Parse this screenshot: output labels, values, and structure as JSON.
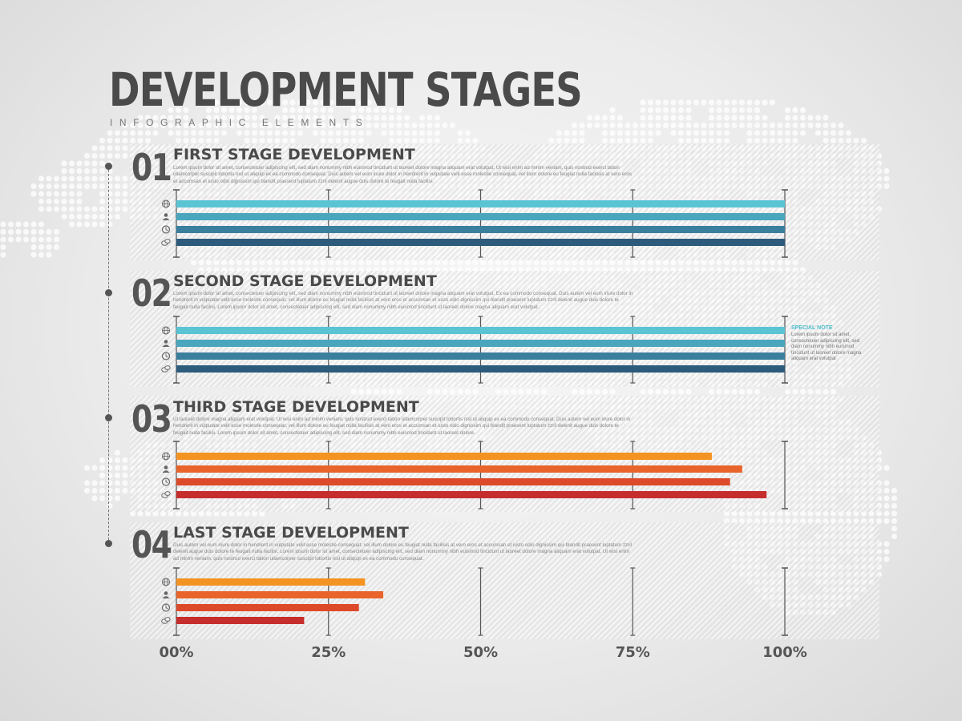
{
  "header": {
    "title": "DEVELOPMENT STAGES",
    "subtitle": "INFOGRAPHIC ELEMENTS"
  },
  "stages": [
    {
      "number": "01",
      "title": "FIRST STAGE DEVELOPMENT",
      "description": "Lorem ipsum dolor sit amet, consectetuer adipiscing elit, sed diam nonummy nibh euismod tincidunt ut laoreet dolore magna aliquam erat volutpat. Ut wisi enim ad minim veniam, quis nostrud exerci tation ullamcorper suscipit lobortis nisl ut aliquip ex ea commodo consequat. Duis autem vel eum iriure dolor in hendrerit in vulputate velit esse molestie consequat, vel illum dolore eu feugiat nulla facilisis at vero eros et accumsan et iusto odio dignissim qui blandit praesent luptatum zzril delenit augue duis dolore te feugait nulla facilisi."
    },
    {
      "number": "02",
      "title": "SECOND STAGE DEVELOPMENT",
      "description": "Lorem ipsum dolor sit amet, consectetuer adipiscing elit, sed diam nonummy nibh euismod tincidunt ut laoreet dolore magna aliquam erat volutpat. Ex ea commodo consequat. Duis autem vel eum iriure dolor in hendrerit in vulputate velit esse molestie consequat, vel illum dolore eu feugiat nulla facilisis at vero eros et accumsan et iusto odio dignissim qui blandit praesent luptatum zzril delenit augue duis dolore te feugait nulla facilisi. Lorem ipsum dolor sit amet, consectetuer adipiscing elit, sed diam nonummy nibh euismod tincidunt ut laoreet dolore magna aliquam erat volutpat."
    },
    {
      "number": "03",
      "title": "THIRD STAGE DEVELOPMENT",
      "description": "Ut laoreet dolore magna aliquam erat volutpat. Ut wisi enim ad minim veniam, quis nostrud exerci tation ullamcorper suscipit lobortis nisl ut aliquip ex ea commodo consequat. Duis autem vel eum iriure dolor in hendrerit in vulputate velit esse molestie consequat, vel illum dolore eu feugiat nulla facilisis at vero eros et accumsan et iusto odio dignissim qui blandit praesent luptatum zzril delenit augue duis dolore te feugait nulla facilisi. Lorem ipsum dolor sit amet, consectetuer adipiscing elit, sed diam nonummy nibh euismod tincidunt ut laoreet dolore."
    },
    {
      "number": "04",
      "title": "LAST STAGE DEVELOPMENT",
      "description": "Duis autem vel eum iriure dolor in hendrerit in vulputate velit esse molestie consequat, vel illum dolore eu feugiat nulla facilisis at vero eros et accumsan et iusto odio dignissim qui blandit praesent luptatum zzril delenit augue duis dolore te feugait nulla facilisi. Lorem ipsum dolor sit amet, consectetuer adipiscing elit, sed diam nonummy nibh euismod tincidunt ut laoreet dolore magna aliquam erat volutpat. Ut wisi enim ad minim veniam, quis nostrud exerci tation ullamcorper suscipit lobortis nisl ut aliquip ex ea commodo consequat."
    }
  ],
  "note": {
    "title": "SPECIAL NOTE",
    "text": "Lorem ipsum dolor sit amet, consectetuer adipiscing elit, sed diam nonummy nibh euismod tincidunt ut laoreet dolore magna aliquam erat volutpat"
  },
  "icons": [
    "globe-icon",
    "user-icon",
    "clock-icon",
    "chat-icon"
  ],
  "colors": {
    "blue": [
      "#5bc4d4",
      "#4aa6bd",
      "#3b7f9f",
      "#2c5b7b"
    ],
    "warm": [
      "#f39321",
      "#e8642a",
      "#dd4a2a",
      "#c62d2d"
    ],
    "text": "#4a4a4a"
  },
  "chart_data": {
    "type": "bar",
    "orientation": "horizontal",
    "x_tick_labels": [
      "00%",
      "25%",
      "50%",
      "75%",
      "100%"
    ],
    "xlim": [
      0,
      100
    ],
    "series": [
      {
        "stage": "01",
        "values": [
          100,
          100,
          100,
          100
        ]
      },
      {
        "stage": "02",
        "values": [
          100,
          100,
          100,
          100
        ]
      },
      {
        "stage": "03",
        "values": [
          88,
          93,
          91,
          97
        ]
      },
      {
        "stage": "04",
        "values": [
          31,
          34,
          30,
          21
        ]
      }
    ]
  }
}
